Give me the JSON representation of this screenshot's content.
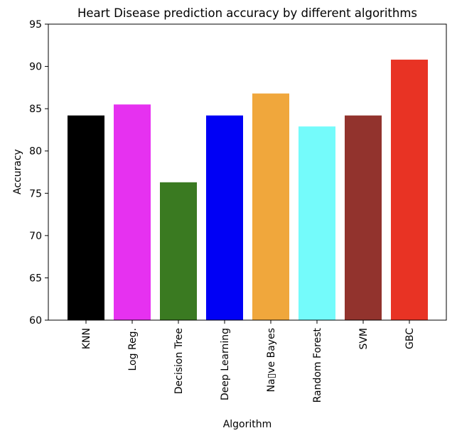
{
  "chart_data": {
    "type": "bar",
    "title": "Heart Disease prediction accuracy by different algorithms",
    "xlabel": "Algorithm",
    "ylabel": "Accuracy",
    "ylim": [
      60,
      95
    ],
    "yticks": [
      60,
      65,
      70,
      75,
      80,
      85,
      90,
      95
    ],
    "grid": false,
    "categories": [
      "KNN",
      "Log Reg.",
      "Decision Tree",
      "Deep Learning",
      "Na▯ve Bayes",
      "Random Forest",
      "SVM",
      "GBC"
    ],
    "values": [
      84.2,
      85.5,
      76.3,
      84.2,
      86.8,
      82.9,
      84.2,
      90.8
    ],
    "colors": [
      "#000000",
      "#e631f0",
      "#3a7a21",
      "#0000f5",
      "#f0a73c",
      "#74fbfb",
      "#92332d",
      "#e83324"
    ]
  }
}
